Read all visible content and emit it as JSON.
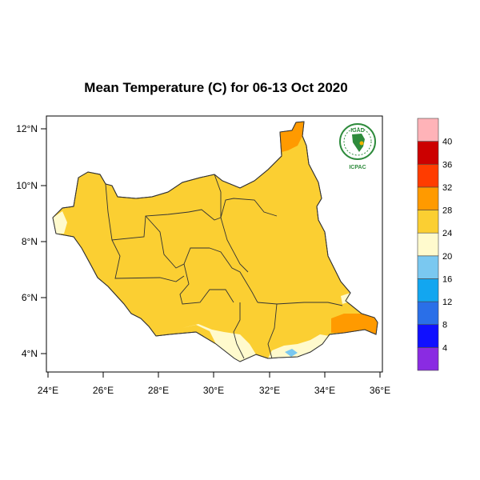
{
  "title": "Mean Temperature (C) for 06-13 Oct 2020",
  "x_axis": {
    "ticks": [
      "24°E",
      "26°E",
      "28°E",
      "30°E",
      "32°E",
      "34°E",
      "36°E"
    ]
  },
  "y_axis": {
    "ticks": [
      "4°N",
      "6°N",
      "8°N",
      "10°N",
      "12°N"
    ]
  },
  "colorbar": {
    "labels": [
      "4",
      "8",
      "12",
      "16",
      "20",
      "24",
      "28",
      "32",
      "36",
      "40"
    ],
    "colors": [
      "#8a2be2",
      "#1010ff",
      "#2a6fe8",
      "#12a6f0",
      "#7ac8f0",
      "#fffacd",
      "#fbcf32",
      "#ff9a00",
      "#ff3c00",
      "#cc0000",
      "#ffb3b8"
    ]
  },
  "logo": {
    "top": "IGAD",
    "bottom": "ICPAC",
    "green": "#2e8b3c"
  }
}
